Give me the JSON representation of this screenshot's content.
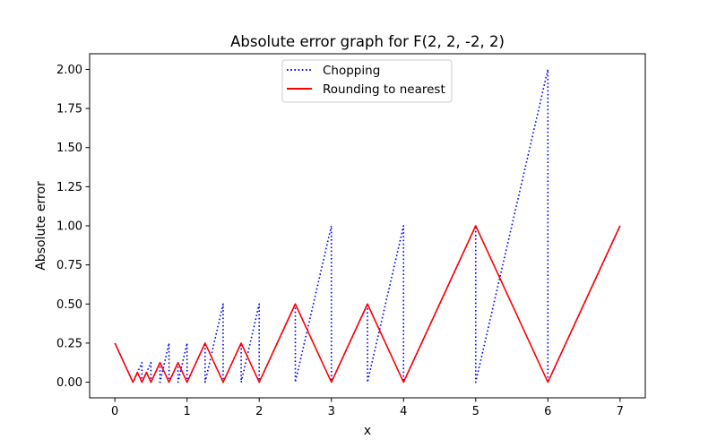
{
  "chart_data": {
    "type": "line",
    "title": "Absolute error graph for F(2, 2, -2, 2)",
    "xlabel": "x",
    "ylabel": "Absolute error",
    "xlim": [
      -0.35,
      7.35
    ],
    "ylim": [
      -0.1,
      2.1
    ],
    "xticks": [
      0,
      1,
      2,
      3,
      4,
      5,
      6,
      7
    ],
    "xtick_labels": [
      "0",
      "1",
      "2",
      "3",
      "4",
      "5",
      "6",
      "7"
    ],
    "yticks": [
      0,
      0.25,
      0.5,
      0.75,
      1.0,
      1.25,
      1.5,
      1.75,
      2.0
    ],
    "ytick_labels": [
      "0.00",
      "0.25",
      "0.50",
      "0.75",
      "1.00",
      "1.25",
      "1.50",
      "1.75",
      "2.00"
    ],
    "grid": false,
    "legend_position": "top-center",
    "series": [
      {
        "name": "Chopping",
        "color": "#0000ff",
        "style": "dotted",
        "x": [
          0,
          0.25,
          0.25,
          0.375,
          0.375,
          0.5,
          0.5,
          0.625,
          0.625,
          0.75,
          0.75,
          0.875,
          0.875,
          1,
          1,
          1.25,
          1.25,
          1.5,
          1.5,
          1.75,
          1.75,
          2,
          2,
          2.5,
          2.5,
          3,
          3,
          3.5,
          3.5,
          4,
          4,
          5,
          5,
          6,
          6,
          7
        ],
        "y": [
          0.25,
          0,
          0,
          0.125,
          0,
          0.125,
          0,
          0.125,
          0,
          0.25,
          0,
          0.125,
          0,
          0.25,
          0,
          0.25,
          0,
          0.5,
          0,
          0.25,
          0,
          0.5,
          0,
          0.5,
          0,
          1,
          0,
          0.5,
          0,
          1,
          0,
          1,
          0,
          2,
          0,
          1
        ]
      },
      {
        "name": "Rounding to nearest",
        "color": "#ff0000",
        "style": "solid",
        "x": [
          0,
          0.25,
          0.3125,
          0.375,
          0.4375,
          0.5,
          0.625,
          0.75,
          0.875,
          1,
          1.25,
          1.5,
          1.75,
          2,
          2.5,
          3,
          3.5,
          4,
          5,
          6,
          7
        ],
        "y": [
          0.25,
          0,
          0.0625,
          0,
          0.0625,
          0,
          0.125,
          0,
          0.125,
          0,
          0.25,
          0,
          0.25,
          0,
          0.5,
          0,
          0.5,
          0,
          1,
          0,
          1
        ]
      }
    ]
  }
}
